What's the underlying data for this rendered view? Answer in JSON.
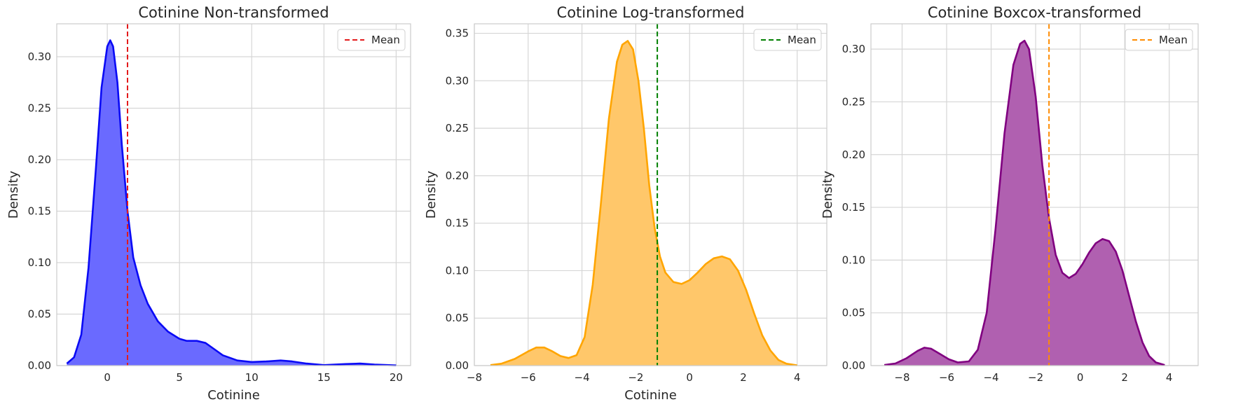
{
  "chart_data": [
    {
      "type": "area",
      "title": "Cotinine Non-transformed",
      "xlabel": "Cotinine",
      "ylabel": "Density",
      "xlim": [
        -3.5,
        21
      ],
      "ylim": [
        0,
        0.332
      ],
      "xticks": [
        0,
        5,
        10,
        15,
        20
      ],
      "yticks": [
        0.0,
        0.05,
        0.1,
        0.15,
        0.2,
        0.25,
        0.3
      ],
      "grid": true,
      "legend": {
        "position": "top-right",
        "entries": [
          {
            "label": "Mean",
            "style": "dashed",
            "color": "#e31a1c"
          }
        ]
      },
      "colors": {
        "line": "#0a0af5",
        "fill": "#6a6aff"
      },
      "mean": 1.4,
      "x": [
        -2.8,
        -2.3,
        -1.8,
        -1.3,
        -0.8,
        -0.4,
        0.0,
        0.2,
        0.4,
        0.7,
        1.0,
        1.4,
        1.8,
        2.3,
        2.8,
        3.5,
        4.2,
        5.0,
        5.5,
        6.2,
        6.8,
        7.3,
        8.0,
        9.0,
        10.0,
        11.0,
        12.0,
        12.8,
        13.8,
        15.0,
        16.5,
        17.5,
        18.5,
        20.0
      ],
      "y": [
        0.002,
        0.008,
        0.03,
        0.095,
        0.19,
        0.27,
        0.31,
        0.316,
        0.31,
        0.275,
        0.215,
        0.15,
        0.105,
        0.078,
        0.06,
        0.043,
        0.033,
        0.026,
        0.024,
        0.024,
        0.022,
        0.017,
        0.01,
        0.005,
        0.0035,
        0.004,
        0.005,
        0.004,
        0.002,
        0.0005,
        0.0015,
        0.002,
        0.001,
        0.0002
      ]
    },
    {
      "type": "area",
      "title": "Cotinine Log-transformed",
      "xlabel": "Cotinine",
      "ylabel": "Density",
      "xlim": [
        -8,
        5.1
      ],
      "ylim": [
        0,
        0.36
      ],
      "xticks": [
        -8,
        -6,
        -4,
        -2,
        0,
        2,
        4
      ],
      "yticks": [
        0.0,
        0.05,
        0.1,
        0.15,
        0.2,
        0.25,
        0.3,
        0.35
      ],
      "grid": true,
      "legend": {
        "position": "top-right",
        "entries": [
          {
            "label": "Mean",
            "style": "dashed",
            "color": "#008000"
          }
        ]
      },
      "colors": {
        "line": "#ffa500",
        "fill": "#ffc76a"
      },
      "mean": -1.2,
      "x": [
        -7.4,
        -7.0,
        -6.5,
        -6.0,
        -5.7,
        -5.4,
        -5.1,
        -4.8,
        -4.5,
        -4.2,
        -3.9,
        -3.6,
        -3.3,
        -3.0,
        -2.7,
        -2.5,
        -2.3,
        -2.1,
        -1.9,
        -1.7,
        -1.5,
        -1.3,
        -1.1,
        -0.9,
        -0.6,
        -0.3,
        0.0,
        0.3,
        0.6,
        0.9,
        1.2,
        1.5,
        1.8,
        2.1,
        2.4,
        2.7,
        3.0,
        3.3,
        3.6,
        4.0
      ],
      "y": [
        0.0005,
        0.002,
        0.007,
        0.015,
        0.019,
        0.019,
        0.015,
        0.01,
        0.008,
        0.011,
        0.03,
        0.085,
        0.17,
        0.26,
        0.32,
        0.338,
        0.342,
        0.333,
        0.3,
        0.25,
        0.19,
        0.145,
        0.115,
        0.098,
        0.088,
        0.086,
        0.09,
        0.098,
        0.107,
        0.113,
        0.115,
        0.112,
        0.1,
        0.08,
        0.055,
        0.032,
        0.016,
        0.006,
        0.002,
        0.0003
      ]
    },
    {
      "type": "area",
      "title": "Cotinine Boxcox-transformed",
      "xlabel": "",
      "ylabel": "Density",
      "xlim": [
        -9.4,
        5.3
      ],
      "ylim": [
        0,
        0.324
      ],
      "xticks": [
        -8,
        -6,
        -4,
        -2,
        0,
        2,
        4
      ],
      "yticks": [
        0.0,
        0.05,
        0.1,
        0.15,
        0.2,
        0.25,
        0.3
      ],
      "grid": true,
      "legend": {
        "position": "top-right",
        "entries": [
          {
            "label": "Mean",
            "style": "dashed",
            "color": "#ff8c00"
          }
        ]
      },
      "colors": {
        "line": "#800080",
        "fill": "#b060b0"
      },
      "mean": -1.4,
      "x": [
        -8.8,
        -8.3,
        -7.8,
        -7.3,
        -7.0,
        -6.7,
        -6.3,
        -5.9,
        -5.5,
        -5.0,
        -4.6,
        -4.2,
        -3.8,
        -3.4,
        -3.0,
        -2.7,
        -2.5,
        -2.3,
        -2.0,
        -1.7,
        -1.4,
        -1.1,
        -0.8,
        -0.5,
        -0.2,
        0.1,
        0.4,
        0.7,
        1.0,
        1.3,
        1.6,
        1.9,
        2.2,
        2.5,
        2.8,
        3.1,
        3.4,
        3.8
      ],
      "y": [
        0.0005,
        0.002,
        0.007,
        0.014,
        0.017,
        0.016,
        0.011,
        0.006,
        0.003,
        0.004,
        0.015,
        0.05,
        0.13,
        0.22,
        0.285,
        0.305,
        0.308,
        0.3,
        0.255,
        0.19,
        0.14,
        0.105,
        0.088,
        0.083,
        0.087,
        0.096,
        0.107,
        0.116,
        0.12,
        0.118,
        0.108,
        0.09,
        0.066,
        0.042,
        0.022,
        0.009,
        0.003,
        0.0005
      ]
    }
  ]
}
